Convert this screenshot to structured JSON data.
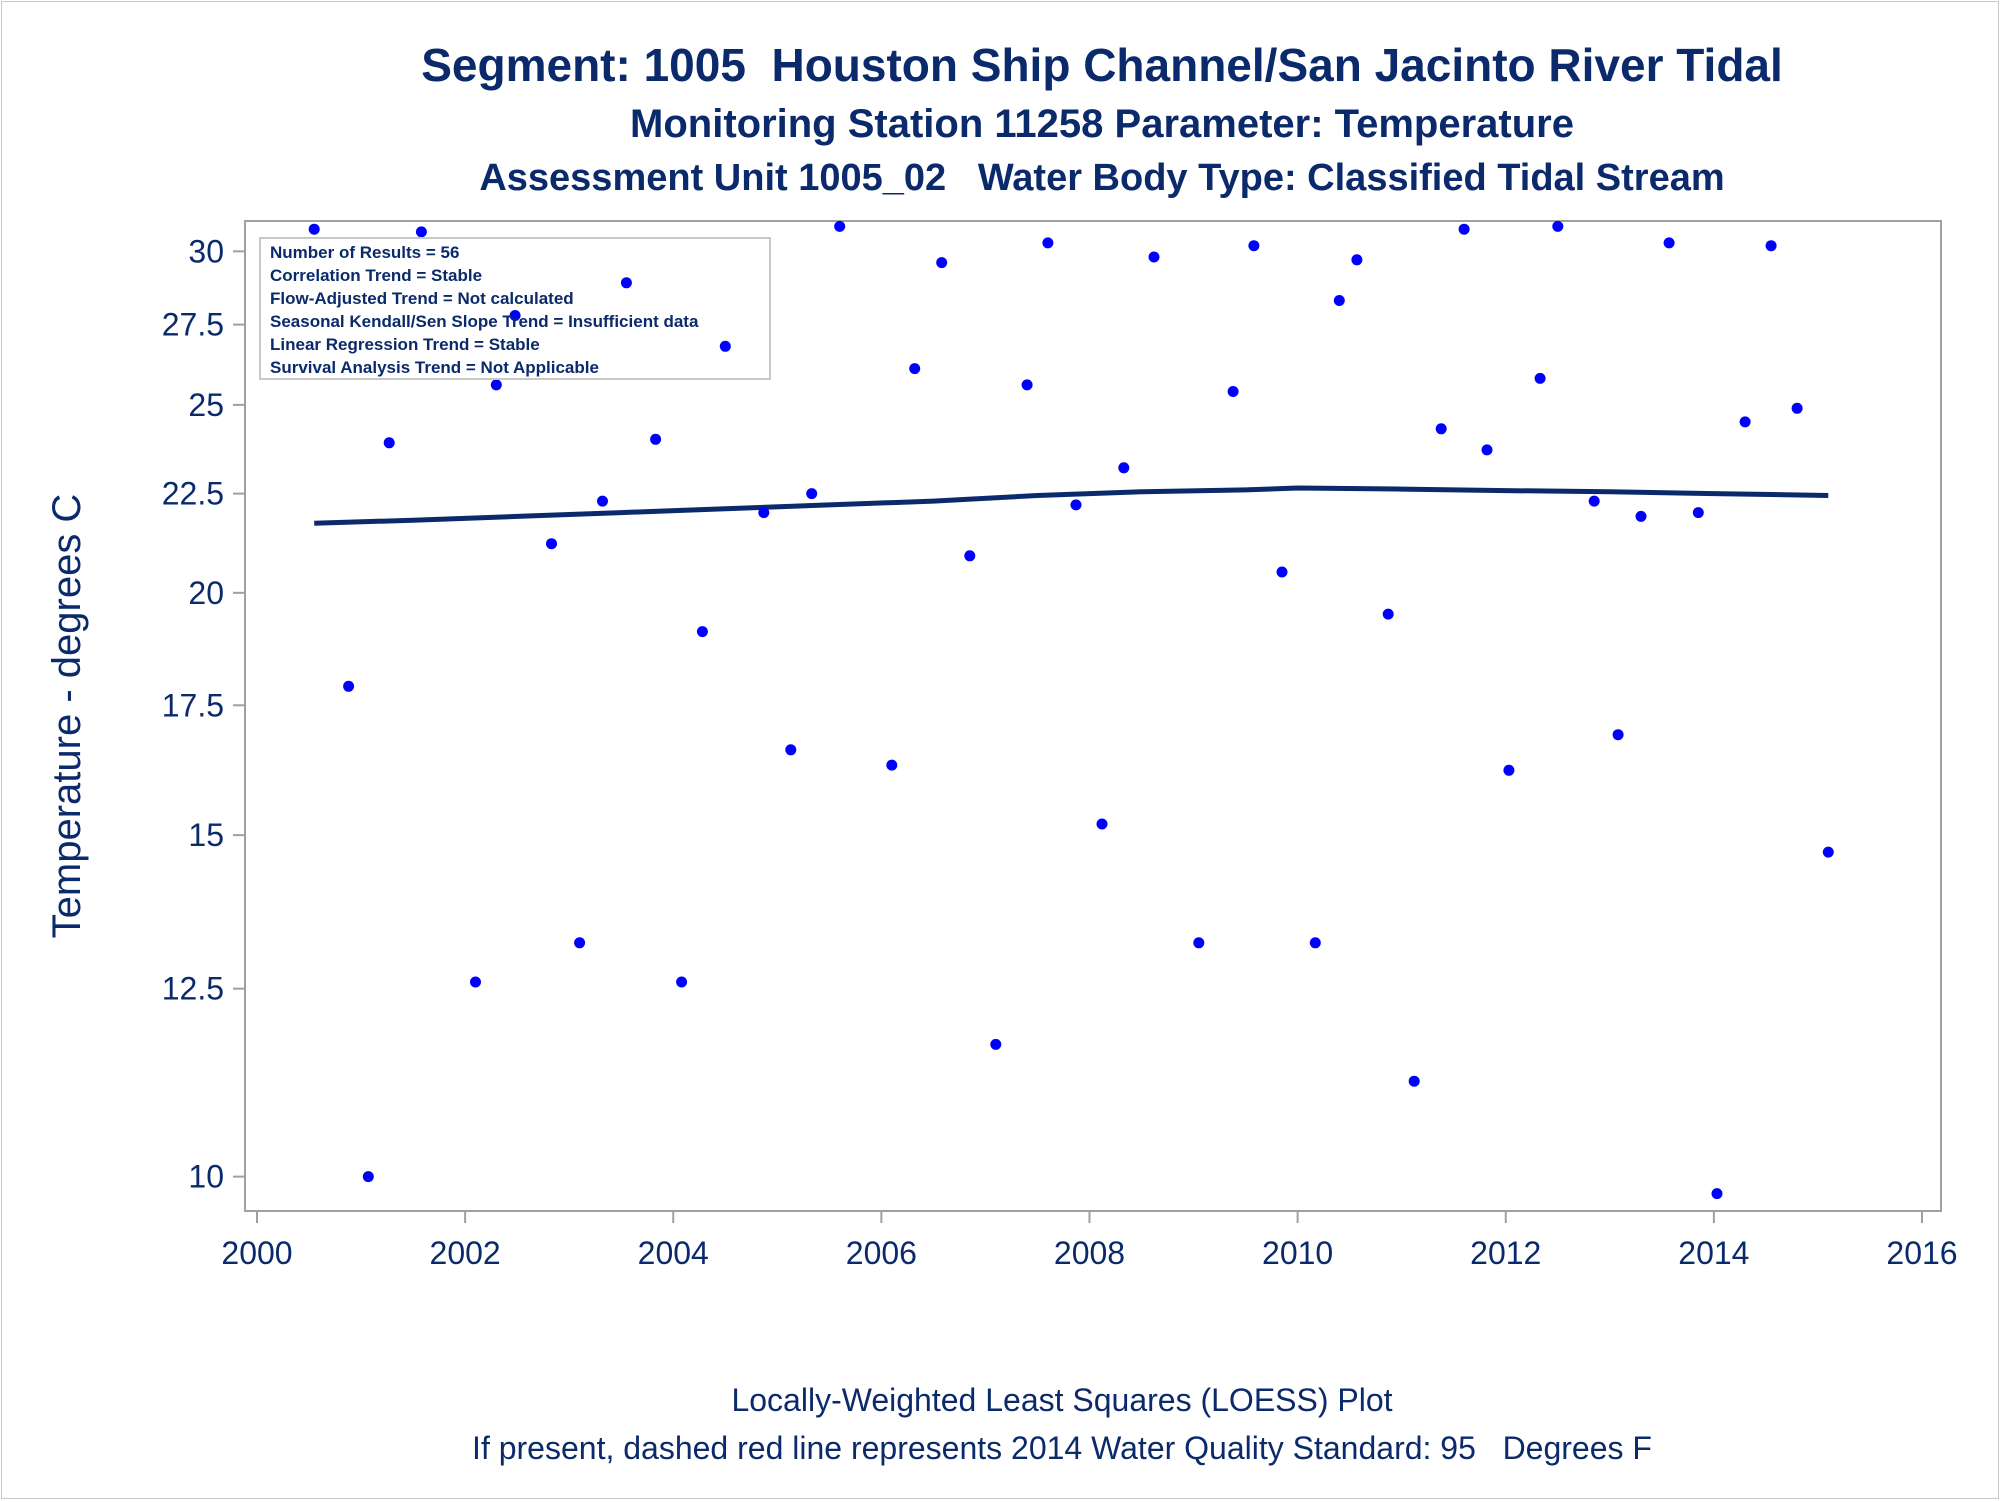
{
  "titles": {
    "line1": "Segment: 1005  Houston Ship Channel/San Jacinto River Tidal",
    "line2": "Monitoring Station 11258 Parameter: Temperature",
    "line3": "Assessment Unit 1005_02   Water Body Type: Classified Tidal Stream"
  },
  "footnotes": {
    "line1": "Locally-Weighted Least Squares (LOESS) Plot",
    "line2": "If present, dashed red line represents 2014 Water Quality Standard: 95   Degrees F"
  },
  "stats_box": [
    "Number of Results = 56",
    "Correlation Trend = Stable",
    "Flow-Adjusted Trend = Not calculated",
    "Seasonal Kendall/Sen Slope Trend = Insufficient data",
    "Linear Regression Trend = Stable",
    "Survival Analysis Trend = Not Applicable"
  ],
  "colors": {
    "title": "#0b2a6b",
    "points": "#0000ff",
    "loess": "#0b2a6b",
    "axis": "#a0a0a0"
  },
  "chart_data": {
    "type": "scatter",
    "xlabel": "",
    "ylabel": "Temperature - degrees C",
    "xlim": [
      2000,
      2016
    ],
    "ylim": [
      9.6,
      31.1
    ],
    "y_scale": "log",
    "xticks": [
      2000,
      2002,
      2004,
      2006,
      2008,
      2010,
      2012,
      2014,
      2016
    ],
    "yticks": [
      10,
      12.5,
      15,
      17.5,
      20,
      22.5,
      25,
      27.5,
      30
    ],
    "ytick_labels": [
      "10",
      "12.5",
      "15",
      "17.5",
      "20",
      "22.5",
      "25",
      "27.5",
      "30"
    ],
    "grid": false,
    "points": [
      [
        2000.55,
        30.8
      ],
      [
        2000.88,
        17.9
      ],
      [
        2001.07,
        10.0
      ],
      [
        2001.27,
        23.9
      ],
      [
        2001.58,
        30.7
      ],
      [
        2002.1,
        12.6
      ],
      [
        2002.3,
        25.6
      ],
      [
        2002.48,
        27.8
      ],
      [
        2002.83,
        21.2
      ],
      [
        2003.1,
        13.2
      ],
      [
        2003.32,
        22.3
      ],
      [
        2003.55,
        28.9
      ],
      [
        2003.83,
        24.0
      ],
      [
        2004.08,
        12.6
      ],
      [
        2004.28,
        19.1
      ],
      [
        2004.5,
        26.8
      ],
      [
        2004.87,
        22.0
      ],
      [
        2005.13,
        16.6
      ],
      [
        2005.33,
        22.5
      ],
      [
        2005.6,
        30.9
      ],
      [
        2006.1,
        16.3
      ],
      [
        2006.32,
        26.1
      ],
      [
        2006.58,
        29.6
      ],
      [
        2006.85,
        20.9
      ],
      [
        2007.1,
        11.7
      ],
      [
        2007.4,
        25.6
      ],
      [
        2007.6,
        30.3
      ],
      [
        2007.87,
        22.2
      ],
      [
        2008.12,
        15.2
      ],
      [
        2008.33,
        23.2
      ],
      [
        2008.62,
        29.8
      ],
      [
        2009.05,
        13.2
      ],
      [
        2009.38,
        25.4
      ],
      [
        2009.58,
        30.2
      ],
      [
        2009.85,
        20.5
      ],
      [
        2010.17,
        13.2
      ],
      [
        2010.4,
        28.3
      ],
      [
        2010.57,
        29.7
      ],
      [
        2010.87,
        19.5
      ],
      [
        2011.12,
        11.2
      ],
      [
        2011.38,
        24.3
      ],
      [
        2011.6,
        30.8
      ],
      [
        2011.82,
        23.7
      ],
      [
        2012.03,
        16.2
      ],
      [
        2012.33,
        25.8
      ],
      [
        2012.5,
        30.9
      ],
      [
        2012.85,
        22.3
      ],
      [
        2013.08,
        16.9
      ],
      [
        2013.3,
        21.9
      ],
      [
        2013.57,
        30.3
      ],
      [
        2013.85,
        22.0
      ],
      [
        2014.03,
        9.8
      ],
      [
        2014.3,
        24.5
      ],
      [
        2014.55,
        30.2
      ],
      [
        2014.8,
        24.9
      ],
      [
        2015.1,
        14.7
      ]
    ],
    "loess_line": [
      [
        2000.55,
        21.72
      ],
      [
        2001.5,
        21.8
      ],
      [
        2002.5,
        21.9
      ],
      [
        2003.5,
        22.0
      ],
      [
        2004.5,
        22.1
      ],
      [
        2005.5,
        22.2
      ],
      [
        2006.5,
        22.3
      ],
      [
        2007.5,
        22.45
      ],
      [
        2008.5,
        22.55
      ],
      [
        2009.5,
        22.6
      ],
      [
        2010.0,
        22.65
      ],
      [
        2011.0,
        22.62
      ],
      [
        2012.0,
        22.58
      ],
      [
        2013.0,
        22.55
      ],
      [
        2014.0,
        22.5
      ],
      [
        2015.1,
        22.45
      ]
    ]
  }
}
